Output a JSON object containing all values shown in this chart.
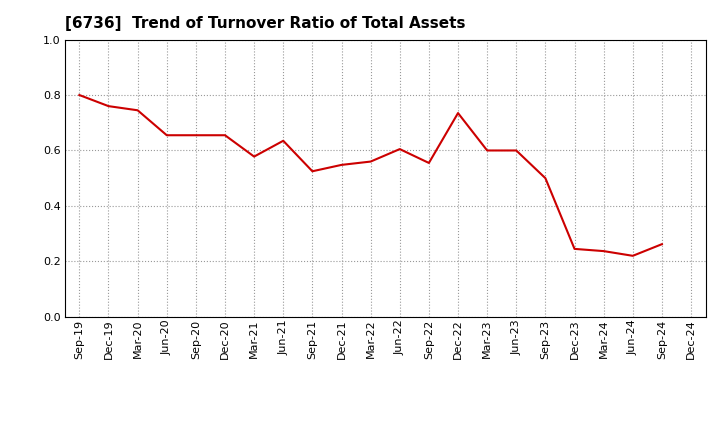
{
  "title": "[6736]  Trend of Turnover Ratio of Total Assets",
  "line_color": "#cc0000",
  "background_color": "#ffffff",
  "grid_color": "#999999",
  "ylim": [
    0.0,
    1.0
  ],
  "yticks": [
    0.0,
    0.2,
    0.4,
    0.6,
    0.8,
    1.0
  ],
  "labels": [
    "Sep-19",
    "Dec-19",
    "Mar-20",
    "Jun-20",
    "Sep-20",
    "Dec-20",
    "Mar-21",
    "Jun-21",
    "Sep-21",
    "Dec-21",
    "Mar-22",
    "Jun-22",
    "Sep-22",
    "Dec-22",
    "Mar-23",
    "Jun-23",
    "Sep-23",
    "Dec-23",
    "Mar-24",
    "Jun-24",
    "Sep-24",
    "Dec-24"
  ],
  "values": [
    0.8,
    0.76,
    0.745,
    0.655,
    0.655,
    0.655,
    0.578,
    0.635,
    0.525,
    0.548,
    0.56,
    0.605,
    0.555,
    0.735,
    0.6,
    0.6,
    0.5,
    0.245,
    0.237,
    0.22,
    0.262,
    null
  ],
  "title_fontsize": 11,
  "tick_fontsize": 8,
  "linewidth": 1.5
}
